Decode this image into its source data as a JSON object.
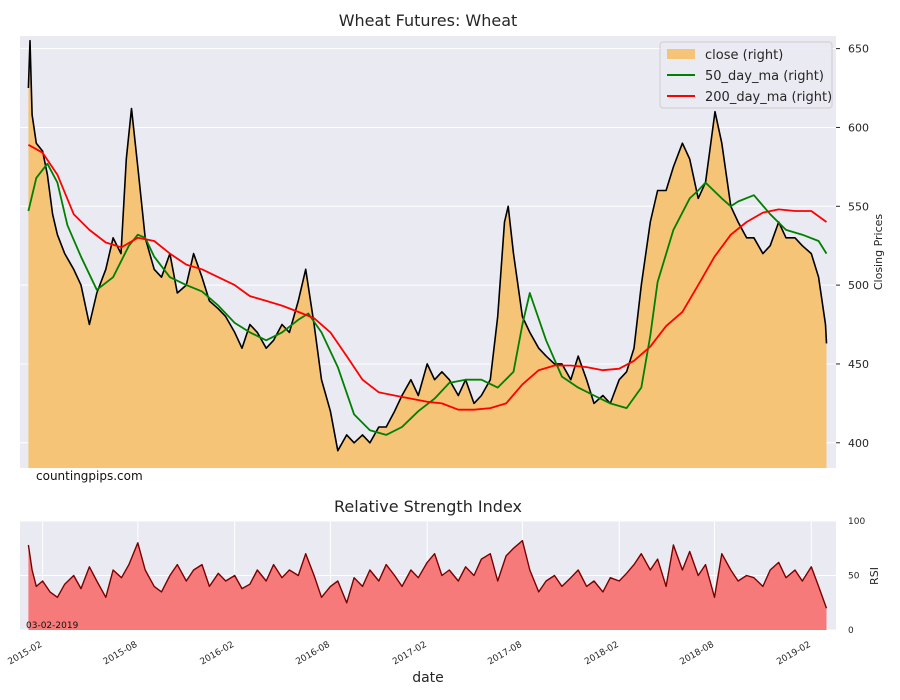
{
  "watermark": "countingpips.com",
  "rsi_date_note": "03-02-2019",
  "colors": {
    "plot_bg": "#eaeaf2",
    "grid": "#ffffff",
    "close_fill": "#f5c477",
    "close_line": "#000000",
    "ma50": "#008000",
    "ma200": "#ff0000",
    "rsi_fill": "#f77a7a",
    "rsi_line": "#7a0000"
  },
  "chart_data": [
    {
      "type": "line",
      "title": "Wheat Futures: Wheat",
      "xlabel": "",
      "ylabel": "Closing Prices",
      "ylim": [
        384,
        658
      ],
      "yticks": [
        "650",
        "600",
        "550",
        "500",
        "450",
        "400"
      ],
      "ytick_values": [
        650,
        600,
        550,
        500,
        450,
        400
      ],
      "grid": true,
      "legend_position": "top-right",
      "x_range": [
        "2014-12-20",
        "2019-03-20"
      ],
      "series": [
        {
          "name": "close (right)",
          "style": "area",
          "x": [
            "2015-01-05",
            "2015-01-08",
            "2015-01-12",
            "2015-01-20",
            "2015-02-01",
            "2015-02-10",
            "2015-02-20",
            "2015-03-01",
            "2015-03-15",
            "2015-04-01",
            "2015-04-15",
            "2015-05-01",
            "2015-05-15",
            "2015-06-01",
            "2015-06-15",
            "2015-06-30",
            "2015-07-10",
            "2015-07-20",
            "2015-08-01",
            "2015-08-15",
            "2015-09-01",
            "2015-09-15",
            "2015-10-01",
            "2015-10-15",
            "2015-11-01",
            "2015-11-15",
            "2015-12-01",
            "2015-12-15",
            "2016-01-01",
            "2016-01-15",
            "2016-02-01",
            "2016-02-15",
            "2016-03-01",
            "2016-03-15",
            "2016-04-01",
            "2016-04-15",
            "2016-05-01",
            "2016-05-15",
            "2016-06-01",
            "2016-06-15",
            "2016-07-01",
            "2016-07-15",
            "2016-08-01",
            "2016-08-15",
            "2016-09-01",
            "2016-09-15",
            "2016-10-01",
            "2016-10-15",
            "2016-11-01",
            "2016-11-15",
            "2016-12-01",
            "2016-12-15",
            "2017-01-01",
            "2017-01-15",
            "2017-02-01",
            "2017-02-15",
            "2017-03-01",
            "2017-03-15",
            "2017-04-01",
            "2017-04-15",
            "2017-05-01",
            "2017-05-15",
            "2017-06-01",
            "2017-06-15",
            "2017-06-28",
            "2017-07-05",
            "2017-07-15",
            "2017-08-01",
            "2017-08-15",
            "2017-09-01",
            "2017-09-15",
            "2017-10-01",
            "2017-10-15",
            "2017-11-01",
            "2017-11-15",
            "2017-12-01",
            "2017-12-15",
            "2018-01-01",
            "2018-01-15",
            "2018-02-01",
            "2018-02-15",
            "2018-03-01",
            "2018-03-15",
            "2018-04-01",
            "2018-04-15",
            "2018-05-01",
            "2018-05-15",
            "2018-06-01",
            "2018-06-15",
            "2018-07-01",
            "2018-07-15",
            "2018-07-25",
            "2018-08-02",
            "2018-08-15",
            "2018-09-01",
            "2018-09-15",
            "2018-10-01",
            "2018-10-15",
            "2018-11-01",
            "2018-11-15",
            "2018-12-01",
            "2018-12-15",
            "2019-01-01",
            "2019-01-15",
            "2019-02-01",
            "2019-02-15",
            "2019-02-28",
            "2019-03-02"
          ],
          "values": [
            625,
            655,
            608,
            590,
            585,
            570,
            545,
            532,
            520,
            510,
            500,
            475,
            495,
            510,
            530,
            520,
            580,
            612,
            575,
            530,
            510,
            505,
            520,
            495,
            500,
            520,
            505,
            490,
            485,
            480,
            470,
            460,
            475,
            470,
            460,
            465,
            475,
            470,
            490,
            510,
            475,
            440,
            420,
            395,
            405,
            400,
            405,
            400,
            410,
            410,
            420,
            430,
            440,
            430,
            450,
            440,
            445,
            440,
            430,
            440,
            425,
            430,
            440,
            480,
            540,
            550,
            520,
            480,
            470,
            460,
            455,
            450,
            450,
            440,
            455,
            440,
            425,
            430,
            425,
            440,
            445,
            460,
            500,
            540,
            560,
            560,
            575,
            590,
            580,
            555,
            565,
            590,
            610,
            590,
            550,
            540,
            530,
            530,
            520,
            525,
            540,
            530,
            530,
            525,
            520,
            505,
            475,
            463
          ]
        },
        {
          "name": "50_day_ma (right)",
          "style": "line",
          "x": [
            "2015-01-05",
            "2015-01-20",
            "2015-02-10",
            "2015-03-01",
            "2015-03-20",
            "2015-04-15",
            "2015-05-15",
            "2015-06-15",
            "2015-07-15",
            "2015-08-01",
            "2015-08-15",
            "2015-09-01",
            "2015-10-01",
            "2015-11-01",
            "2015-12-01",
            "2016-01-01",
            "2016-02-01",
            "2016-03-01",
            "2016-04-01",
            "2016-05-01",
            "2016-06-01",
            "2016-06-20",
            "2016-07-15",
            "2016-08-15",
            "2016-09-15",
            "2016-10-15",
            "2016-11-15",
            "2016-12-15",
            "2017-01-15",
            "2017-02-15",
            "2017-03-15",
            "2017-04-15",
            "2017-05-15",
            "2017-06-15",
            "2017-07-15",
            "2017-08-01",
            "2017-08-15",
            "2017-09-15",
            "2017-10-15",
            "2017-11-15",
            "2017-12-15",
            "2018-01-15",
            "2018-02-15",
            "2018-03-15",
            "2018-04-01",
            "2018-04-15",
            "2018-05-15",
            "2018-06-15",
            "2018-07-01",
            "2018-07-15",
            "2018-08-15",
            "2018-09-01",
            "2018-09-15",
            "2018-10-15",
            "2018-11-15",
            "2018-12-15",
            "2019-01-15",
            "2019-02-15",
            "2019-03-02"
          ],
          "values": [
            547,
            568,
            577,
            565,
            538,
            518,
            497,
            505,
            525,
            532,
            530,
            518,
            505,
            500,
            496,
            487,
            476,
            470,
            465,
            470,
            478,
            482,
            470,
            448,
            418,
            408,
            405,
            410,
            420,
            428,
            438,
            440,
            440,
            435,
            445,
            475,
            495,
            465,
            442,
            435,
            430,
            425,
            422,
            435,
            468,
            502,
            535,
            555,
            560,
            565,
            555,
            550,
            553,
            557,
            545,
            535,
            532,
            528,
            520
          ]
        },
        {
          "name": "200_day_ma (right)",
          "style": "line",
          "x": [
            "2015-01-05",
            "2015-02-01",
            "2015-03-01",
            "2015-04-01",
            "2015-05-01",
            "2015-06-01",
            "2015-07-01",
            "2015-08-01",
            "2015-09-01",
            "2015-10-01",
            "2015-11-01",
            "2015-12-01",
            "2016-01-01",
            "2016-02-01",
            "2016-03-01",
            "2016-04-01",
            "2016-05-01",
            "2016-06-01",
            "2016-07-01",
            "2016-08-01",
            "2016-09-01",
            "2016-10-01",
            "2016-11-01",
            "2016-12-01",
            "2017-01-01",
            "2017-02-01",
            "2017-03-01",
            "2017-04-01",
            "2017-05-01",
            "2017-06-01",
            "2017-07-01",
            "2017-08-01",
            "2017-09-01",
            "2017-10-01",
            "2017-11-01",
            "2017-12-01",
            "2018-01-01",
            "2018-02-01",
            "2018-03-01",
            "2018-04-01",
            "2018-05-01",
            "2018-06-01",
            "2018-07-01",
            "2018-08-01",
            "2018-09-01",
            "2018-10-01",
            "2018-11-01",
            "2018-12-01",
            "2019-01-01",
            "2019-02-01",
            "2019-03-02"
          ],
          "values": [
            589,
            584,
            570,
            545,
            535,
            527,
            524,
            530,
            528,
            520,
            513,
            510,
            505,
            500,
            493,
            490,
            487,
            483,
            479,
            470,
            455,
            440,
            432,
            430,
            428,
            426,
            425,
            421,
            421,
            422,
            425,
            437,
            446,
            449,
            449,
            448,
            446,
            447,
            452,
            461,
            474,
            483,
            500,
            518,
            532,
            540,
            546,
            548,
            547,
            547,
            540
          ]
        }
      ]
    },
    {
      "type": "area",
      "title": "Relative Strength Index",
      "xlabel": "date",
      "ylabel": "RSI",
      "ylim": [
        0,
        100
      ],
      "yticks": [
        "100",
        "50",
        "0"
      ],
      "ytick_values": [
        100,
        50,
        0
      ],
      "x_ticks": [
        "2015-02",
        "2015-08",
        "2016-02",
        "2016-08",
        "2017-02",
        "2017-08",
        "2018-02",
        "2018-08",
        "2019-02"
      ],
      "grid": true,
      "series": [
        {
          "name": "RSI",
          "x": [
            "2015-01-05",
            "2015-01-12",
            "2015-01-20",
            "2015-02-01",
            "2015-02-15",
            "2015-03-01",
            "2015-03-15",
            "2015-04-01",
            "2015-04-15",
            "2015-05-01",
            "2015-05-15",
            "2015-06-01",
            "2015-06-15",
            "2015-07-01",
            "2015-07-15",
            "2015-08-01",
            "2015-08-15",
            "2015-09-01",
            "2015-09-15",
            "2015-10-01",
            "2015-10-15",
            "2015-11-01",
            "2015-11-15",
            "2015-12-01",
            "2015-12-15",
            "2016-01-01",
            "2016-01-15",
            "2016-02-01",
            "2016-02-15",
            "2016-03-01",
            "2016-03-15",
            "2016-04-01",
            "2016-04-15",
            "2016-05-01",
            "2016-05-15",
            "2016-06-01",
            "2016-06-15",
            "2016-07-01",
            "2016-07-15",
            "2016-08-01",
            "2016-08-15",
            "2016-09-01",
            "2016-09-15",
            "2016-10-01",
            "2016-10-15",
            "2016-11-01",
            "2016-11-15",
            "2016-12-01",
            "2016-12-15",
            "2017-01-01",
            "2017-01-15",
            "2017-02-01",
            "2017-02-15",
            "2017-03-01",
            "2017-03-15",
            "2017-04-01",
            "2017-04-15",
            "2017-05-01",
            "2017-05-15",
            "2017-06-01",
            "2017-06-15",
            "2017-07-01",
            "2017-07-15",
            "2017-08-01",
            "2017-08-15",
            "2017-09-01",
            "2017-09-15",
            "2017-10-01",
            "2017-10-15",
            "2017-11-01",
            "2017-11-15",
            "2017-12-01",
            "2017-12-15",
            "2018-01-01",
            "2018-01-15",
            "2018-02-01",
            "2018-02-15",
            "2018-03-01",
            "2018-03-15",
            "2018-04-01",
            "2018-04-15",
            "2018-05-01",
            "2018-05-15",
            "2018-06-01",
            "2018-06-15",
            "2018-07-01",
            "2018-07-15",
            "2018-08-01",
            "2018-08-15",
            "2018-09-01",
            "2018-09-15",
            "2018-10-01",
            "2018-10-15",
            "2018-11-01",
            "2018-11-15",
            "2018-12-01",
            "2018-12-15",
            "2019-01-01",
            "2019-01-15",
            "2019-02-01",
            "2019-02-15",
            "2019-03-02"
          ],
          "values": [
            78,
            55,
            40,
            45,
            35,
            30,
            42,
            50,
            38,
            58,
            45,
            30,
            55,
            48,
            60,
            80,
            55,
            40,
            35,
            50,
            60,
            45,
            55,
            60,
            40,
            52,
            45,
            50,
            38,
            42,
            55,
            45,
            60,
            48,
            55,
            50,
            70,
            50,
            30,
            40,
            45,
            25,
            48,
            40,
            55,
            45,
            60,
            50,
            40,
            55,
            48,
            62,
            70,
            50,
            55,
            45,
            58,
            50,
            65,
            70,
            45,
            68,
            75,
            82,
            55,
            35,
            45,
            50,
            40,
            48,
            55,
            40,
            45,
            35,
            48,
            45,
            52,
            60,
            70,
            55,
            65,
            40,
            78,
            55,
            72,
            50,
            60,
            30,
            70,
            55,
            45,
            50,
            48,
            40,
            55,
            62,
            48,
            55,
            45,
            58,
            40,
            20
          ]
        }
      ]
    }
  ]
}
